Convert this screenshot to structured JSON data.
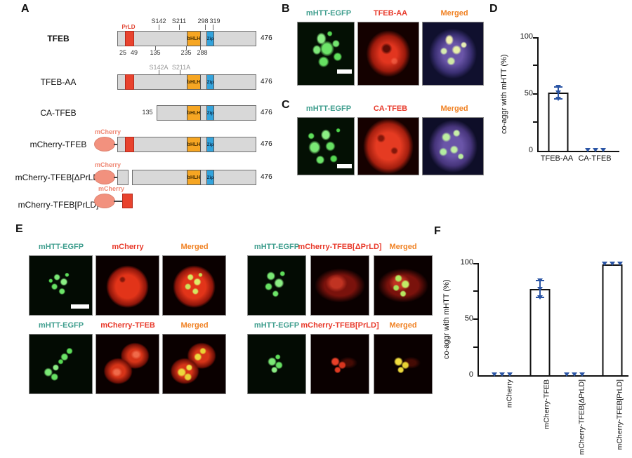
{
  "colors": {
    "green_label": "#3f9e8e",
    "red_label": "#e83a2b",
    "orange_label": "#f08224",
    "salmon_mcherry": "#f2917e",
    "marker_blue": "#2b55a5",
    "domain_gray": "#d8d8d8",
    "prld_red": "#e8432e",
    "bhlh_orange": "#f6a623",
    "zip_blue": "#33a3dc"
  },
  "panelA": {
    "label": "A",
    "constructs": [
      {
        "name": "TFEB",
        "end": "476",
        "prld_label": "PrLD",
        "bhlh": "bHLH",
        "zip": "Zip",
        "top_labels": [
          "S142",
          "S211",
          "298",
          "319"
        ],
        "bottom_labels": [
          "25",
          "49",
          "135",
          "235",
          "288"
        ]
      },
      {
        "name": "TFEB-AA",
        "end": "476",
        "bhlh": "bHLH",
        "zip": "Zip",
        "top_labels": [
          "S142A",
          "S211A"
        ]
      },
      {
        "name": "CA-TFEB",
        "end": "476",
        "start_label": "135",
        "bhlh": "bHLH",
        "zip": "Zip"
      },
      {
        "name": "mCherry-TFEB",
        "end": "476",
        "tag": "mCherry",
        "bhlh": "bHLH",
        "zip": "Zip"
      },
      {
        "name": "mCherry-TFEB[ΔPrLD]",
        "end": "476",
        "tag": "mCherry",
        "bhlh": "bHLH",
        "zip": "Zip"
      },
      {
        "name": "mCherry-TFEB[PrLD]",
        "tag": "mCherry"
      }
    ]
  },
  "panelB": {
    "label": "B",
    "headers": [
      "mHTT-EGFP",
      "TFEB-AA",
      "Merged"
    ]
  },
  "panelC": {
    "label": "C",
    "headers": [
      "mHTT-EGFP",
      "CA-TFEB",
      "Merged"
    ]
  },
  "panelD": {
    "label": "D"
  },
  "panelE": {
    "label": "E",
    "sets": [
      {
        "headers": [
          "mHTT-EGFP",
          "mCherry",
          "Merged"
        ]
      },
      {
        "headers": [
          "mHTT-EGFP",
          "mCherry-TFEB[ΔPrLD]",
          "Merged"
        ]
      },
      {
        "headers": [
          "mHTT-EGFP",
          "mCherry-TFEB",
          "Merged"
        ]
      },
      {
        "headers": [
          "mHTT-EGFP",
          "mCherry-TFEB[PrLD]",
          "Merged"
        ]
      }
    ]
  },
  "panelF": {
    "label": "F"
  },
  "chart_data": [
    {
      "type": "bar",
      "panel": "D",
      "categories": [
        "TFEB-AA",
        "CA-TFEB"
      ],
      "values": [
        51,
        0
      ],
      "errors": [
        6,
        0
      ],
      "points_per_bar": 3,
      "title": "",
      "xlabel": "",
      "ylabel": "co-aggr with mHTT  (%)",
      "ylim": [
        0,
        100
      ],
      "yticks": [
        0,
        50,
        100
      ],
      "bar_fill": "#ffffff",
      "bar_edge": "#111111",
      "point_color": "#2b55a5",
      "grid": false,
      "legend": false
    },
    {
      "type": "bar",
      "panel": "F",
      "categories": [
        "mCherry",
        "mCherry-TFEB",
        "mCherry-TFEB[ΔPrLD]",
        "mCherry-TFEB[PrLD]"
      ],
      "values": [
        0,
        77,
        0,
        99
      ],
      "errors": [
        0,
        8,
        0,
        1
      ],
      "points_per_bar": 3,
      "title": "",
      "xlabel": "",
      "ylabel": "co-aggr with mHTT  (%)",
      "ylim": [
        0,
        100
      ],
      "yticks": [
        0,
        50,
        100
      ],
      "bar_fill": "#ffffff",
      "bar_edge": "#111111",
      "point_color": "#2b55a5",
      "grid": false,
      "legend": false
    }
  ]
}
